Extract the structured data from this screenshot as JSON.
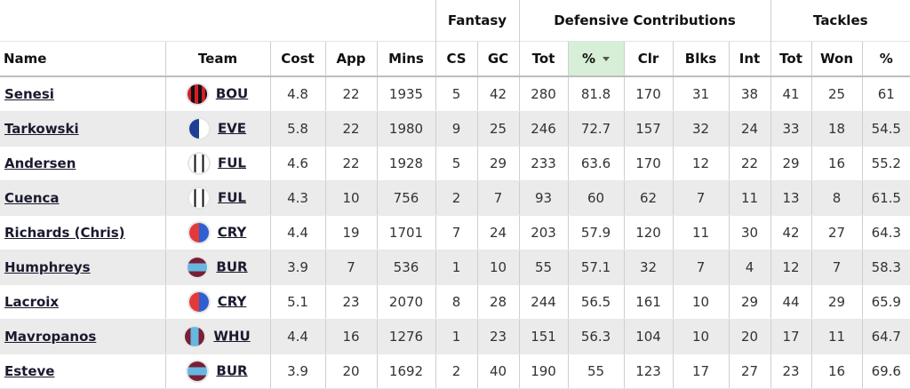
{
  "groups": {
    "fantasy": "Fantasy",
    "defensive": "Defensive Contributions",
    "tackles": "Tackles"
  },
  "columns": {
    "name": "Name",
    "team": "Team",
    "cost": "Cost",
    "app": "App",
    "mins": "Mins",
    "cs": "CS",
    "gc": "GC",
    "dc_tot": "Tot",
    "dc_pct": "%",
    "clr": "Clr",
    "blks": "Blks",
    "int": "Int",
    "tk_tot": "Tot",
    "tk_won": "Won",
    "tk_pct": "%"
  },
  "sorted_column": "dc_pct",
  "colors": {
    "sorted_header_bg": "#d6efd6",
    "alt_row_bg": "#ebebeb"
  },
  "rows": [
    {
      "name": "Senesi",
      "team": "BOU",
      "team_icon": "bournemouth-crest-icon",
      "cost": "4.8",
      "app": "22",
      "mins": "1935",
      "cs": "5",
      "gc": "42",
      "dc_tot": "280",
      "dc_pct": "81.8",
      "clr": "170",
      "blks": "31",
      "int": "38",
      "tk_tot": "41",
      "tk_won": "25",
      "tk_pct": "61"
    },
    {
      "name": "Tarkowski",
      "team": "EVE",
      "team_icon": "everton-crest-icon",
      "cost": "5.8",
      "app": "22",
      "mins": "1980",
      "cs": "9",
      "gc": "25",
      "dc_tot": "246",
      "dc_pct": "72.7",
      "clr": "157",
      "blks": "32",
      "int": "24",
      "tk_tot": "33",
      "tk_won": "18",
      "tk_pct": "54.5"
    },
    {
      "name": "Andersen",
      "team": "FUL",
      "team_icon": "fulham-crest-icon",
      "cost": "4.6",
      "app": "22",
      "mins": "1928",
      "cs": "5",
      "gc": "29",
      "dc_tot": "233",
      "dc_pct": "63.6",
      "clr": "170",
      "blks": "12",
      "int": "22",
      "tk_tot": "29",
      "tk_won": "16",
      "tk_pct": "55.2"
    },
    {
      "name": "Cuenca",
      "team": "FUL",
      "team_icon": "fulham-crest-icon",
      "cost": "4.3",
      "app": "10",
      "mins": "756",
      "cs": "2",
      "gc": "7",
      "dc_tot": "93",
      "dc_pct": "60",
      "clr": "62",
      "blks": "7",
      "int": "11",
      "tk_tot": "13",
      "tk_won": "8",
      "tk_pct": "61.5"
    },
    {
      "name": "Richards (Chris)",
      "team": "CRY",
      "team_icon": "crystal-palace-crest-icon",
      "cost": "4.4",
      "app": "19",
      "mins": "1701",
      "cs": "7",
      "gc": "24",
      "dc_tot": "203",
      "dc_pct": "57.9",
      "clr": "120",
      "blks": "11",
      "int": "30",
      "tk_tot": "42",
      "tk_won": "27",
      "tk_pct": "64.3"
    },
    {
      "name": "Humphreys",
      "team": "BUR",
      "team_icon": "burnley-crest-icon",
      "cost": "3.9",
      "app": "7",
      "mins": "536",
      "cs": "1",
      "gc": "10",
      "dc_tot": "55",
      "dc_pct": "57.1",
      "clr": "32",
      "blks": "7",
      "int": "4",
      "tk_tot": "12",
      "tk_won": "7",
      "tk_pct": "58.3"
    },
    {
      "name": "Lacroix",
      "team": "CRY",
      "team_icon": "crystal-palace-crest-icon",
      "cost": "5.1",
      "app": "23",
      "mins": "2070",
      "cs": "8",
      "gc": "28",
      "dc_tot": "244",
      "dc_pct": "56.5",
      "clr": "161",
      "blks": "10",
      "int": "29",
      "tk_tot": "44",
      "tk_won": "29",
      "tk_pct": "65.9"
    },
    {
      "name": "Mavropanos",
      "team": "WHU",
      "team_icon": "west-ham-crest-icon",
      "cost": "4.4",
      "app": "16",
      "mins": "1276",
      "cs": "1",
      "gc": "23",
      "dc_tot": "151",
      "dc_pct": "56.3",
      "clr": "104",
      "blks": "10",
      "int": "20",
      "tk_tot": "17",
      "tk_won": "11",
      "tk_pct": "64.7"
    },
    {
      "name": "Esteve",
      "team": "BUR",
      "team_icon": "burnley-crest-icon",
      "cost": "3.9",
      "app": "20",
      "mins": "1692",
      "cs": "2",
      "gc": "40",
      "dc_tot": "190",
      "dc_pct": "55",
      "clr": "123",
      "blks": "17",
      "int": "27",
      "tk_tot": "23",
      "tk_won": "16",
      "tk_pct": "69.6"
    }
  ]
}
